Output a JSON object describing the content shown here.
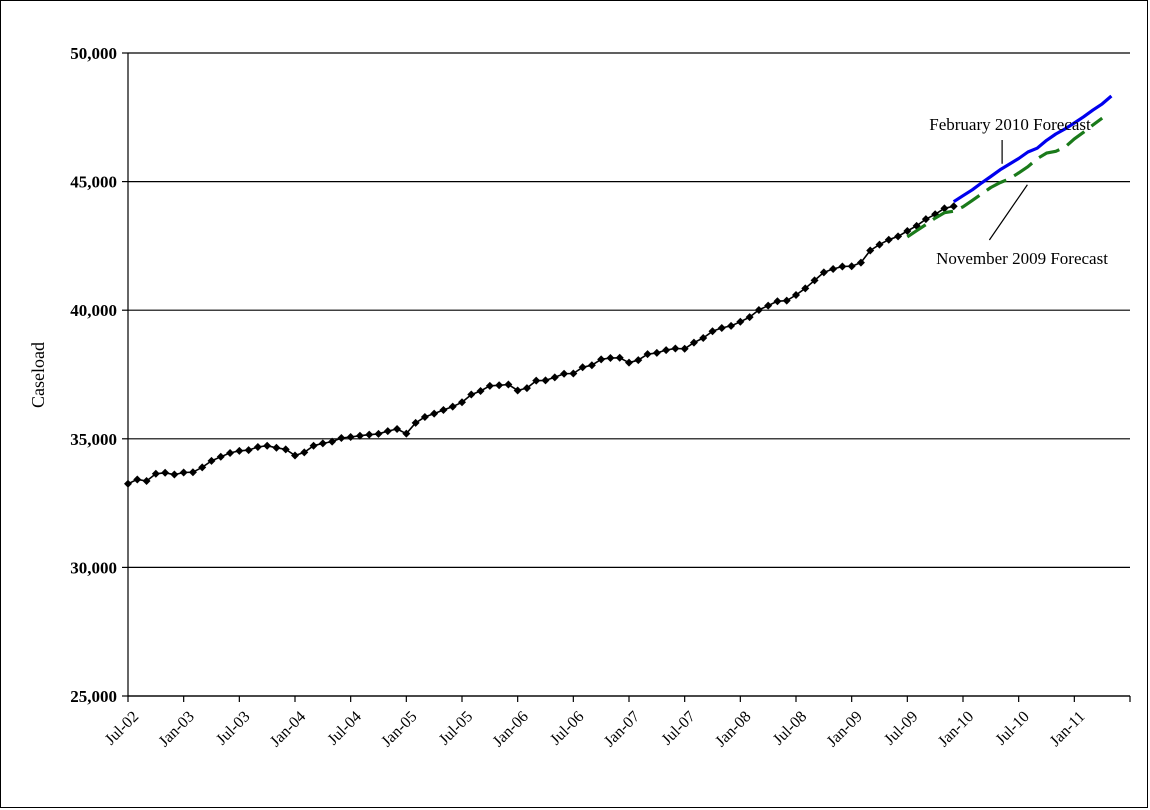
{
  "chart_data": {
    "type": "line",
    "title": "",
    "xlabel": "",
    "ylabel": "Caseload",
    "ylim": [
      25000,
      50000
    ],
    "yticks": [
      25000,
      30000,
      35000,
      40000,
      45000,
      50000
    ],
    "ytick_labels": [
      "25,000",
      "30,000",
      "35,000",
      "40,000",
      "45,000",
      "50,000"
    ],
    "xrange": [
      "2002-07",
      "2011-07"
    ],
    "xtick_labels": [
      "Jul-02",
      "Jan-03",
      "Jul-03",
      "Jan-04",
      "Jul-04",
      "Jan-05",
      "Jul-05",
      "Jan-06",
      "Jul-06",
      "Jan-07",
      "Jul-07",
      "Jan-08",
      "Jul-08",
      "Jan-09",
      "Jul-09",
      "Jan-10",
      "Jul-10",
      "Jan-11"
    ],
    "grid": "horizontal",
    "legend": "none",
    "series": [
      {
        "name": "",
        "role": "actual",
        "style": "line-with-diamond-markers",
        "color": "#000000",
        "start": "2002-07",
        "values": [
          33250,
          33420,
          33360,
          33640,
          33680,
          33610,
          33690,
          33700,
          33890,
          34140,
          34300,
          34450,
          34530,
          34560,
          34680,
          34730,
          34650,
          34590,
          34350,
          34470,
          34730,
          34820,
          34890,
          35030,
          35070,
          35120,
          35160,
          35190,
          35300,
          35380,
          35200,
          35620,
          35850,
          35980,
          36120,
          36250,
          36420,
          36720,
          36860,
          37060,
          37080,
          37110,
          36880,
          36970,
          37260,
          37270,
          37390,
          37530,
          37540,
          37780,
          37860,
          38090,
          38140,
          38150,
          37960,
          38060,
          38290,
          38340,
          38450,
          38510,
          38500,
          38740,
          38920,
          39180,
          39310,
          39390,
          39550,
          39730,
          40010,
          40180,
          40350,
          40370,
          40590,
          40850,
          41160,
          41470,
          41600,
          41700,
          41710,
          41850,
          42320,
          42550,
          42740,
          42870,
          43080,
          43280,
          43540,
          43730,
          43960,
          44040
        ]
      },
      {
        "name": "",
        "role": "forecast",
        "style": "solid",
        "color": "#0000ee",
        "start": "2009-12",
        "values": [
          44220,
          44450,
          44680,
          44950,
          45200,
          45460,
          45680,
          45900,
          46150,
          46300,
          46600,
          46850,
          47050,
          47280,
          47520,
          47780,
          48020,
          48330
        ]
      },
      {
        "name": "",
        "role": "forecast",
        "style": "dashed",
        "color": "#1a7a1a",
        "start": "2009-07",
        "values": [
          42850,
          43090,
          43330,
          43580,
          43790,
          43850,
          44020,
          44270,
          44520,
          44770,
          44960,
          45110,
          45340,
          45580,
          45890,
          46110,
          46180,
          46340,
          46660,
          46920,
          47200,
          47470
        ]
      }
    ],
    "annotations": [
      {
        "text": "February 2010 Forecast",
        "points_to_series": 1,
        "points_to_date": "2010-05"
      },
      {
        "text": "November 2009 Forecast",
        "points_to_series": 2,
        "points_to_date": "2010-06"
      }
    ]
  }
}
